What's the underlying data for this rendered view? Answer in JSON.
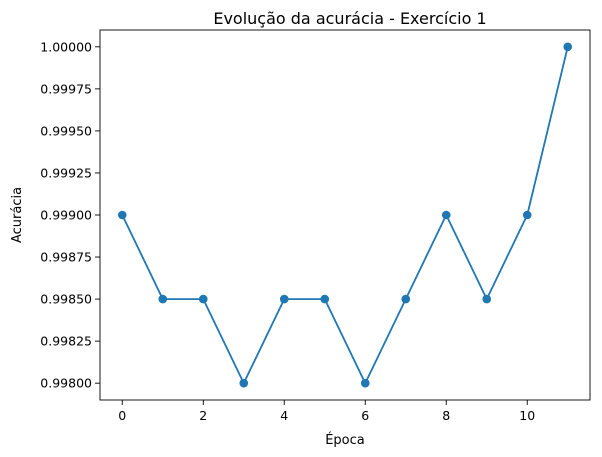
{
  "chart_data": {
    "type": "line",
    "title": "Evolução da acurácia - Exercício 1",
    "xlabel": "Época",
    "ylabel": "Acurácia",
    "x": [
      0,
      1,
      2,
      3,
      4,
      5,
      6,
      7,
      8,
      9,
      10,
      11
    ],
    "series": [
      {
        "values": [
          0.999,
          0.9985,
          0.9985,
          0.998,
          0.9985,
          0.9985,
          0.998,
          0.9985,
          0.999,
          0.9985,
          0.999,
          1.0
        ],
        "color": "#1f77b4",
        "marker": "circle"
      }
    ],
    "xticks": [
      0,
      2,
      4,
      6,
      8,
      10
    ],
    "xtick_labels": [
      "0",
      "2",
      "4",
      "6",
      "8",
      "10"
    ],
    "yticks": [
      0.998,
      0.99825,
      0.9985,
      0.99875,
      0.999,
      0.99925,
      0.9995,
      0.99975,
      1.0
    ],
    "ytick_labels": [
      "0.99800",
      "0.99825",
      "0.99850",
      "0.99875",
      "0.99900",
      "0.99925",
      "0.99950",
      "0.99975",
      "1.00000"
    ],
    "xlim": [
      -0.55,
      11.55
    ],
    "ylim": [
      0.9979,
      1.0001
    ],
    "grid": false,
    "legend": "none"
  }
}
